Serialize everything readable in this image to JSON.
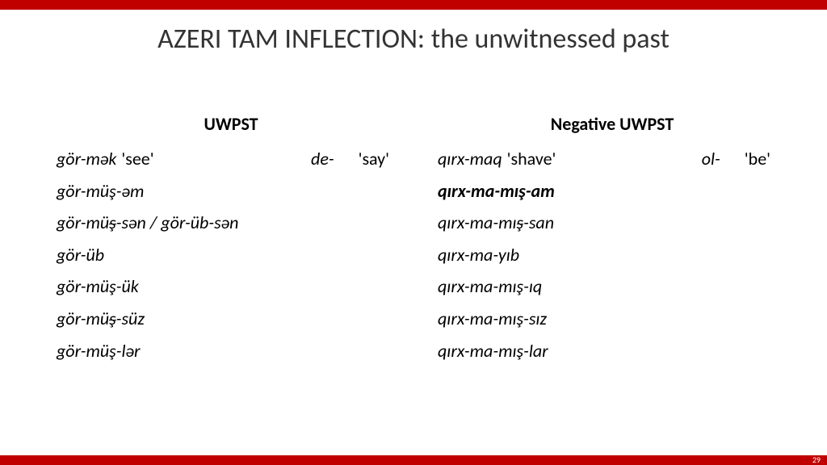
{
  "colors": {
    "accent": "#c00000",
    "background": "#ffffff",
    "text": "#000000"
  },
  "title": "AZERI TAM INFLECTION: the unwitnessed past",
  "page_number": "29",
  "left": {
    "header": "UWPST",
    "lemma1": "gör-mək",
    "gloss1": "'see'",
    "lemma2": "de-",
    "gloss2": "'say'",
    "rows": [
      {
        "pre": "gör-müş-əm"
      },
      {
        "pre": "gör-mü",
        "strike": "ş",
        "post": "-sən / gör-üb-sən"
      },
      {
        "pre": "gör-üb"
      },
      {
        "pre": "gör-müş-ük"
      },
      {
        "pre": "gör-mü",
        "strike": "ş",
        "post": "-süz"
      },
      {
        "pre": "gör-müş-lər"
      }
    ]
  },
  "right": {
    "header": "Negative UWPST",
    "lemma1": "qırx-maq",
    "gloss1": "'shave'",
    "lemma2": "ol-",
    "gloss2": "'be'",
    "rows": [
      {
        "pre": "qırx-ma-mış-am",
        "bold": true
      },
      {
        "pre": "qırx-ma-mı",
        "strike": "ş",
        "post": "-san"
      },
      {
        "pre": "qırx-ma-yıb"
      },
      {
        "pre": "qırx-ma-mış-ıq"
      },
      {
        "pre": "qırx-ma-mış-sız"
      },
      {
        "pre": "qırx-ma-mış-lar"
      }
    ]
  }
}
